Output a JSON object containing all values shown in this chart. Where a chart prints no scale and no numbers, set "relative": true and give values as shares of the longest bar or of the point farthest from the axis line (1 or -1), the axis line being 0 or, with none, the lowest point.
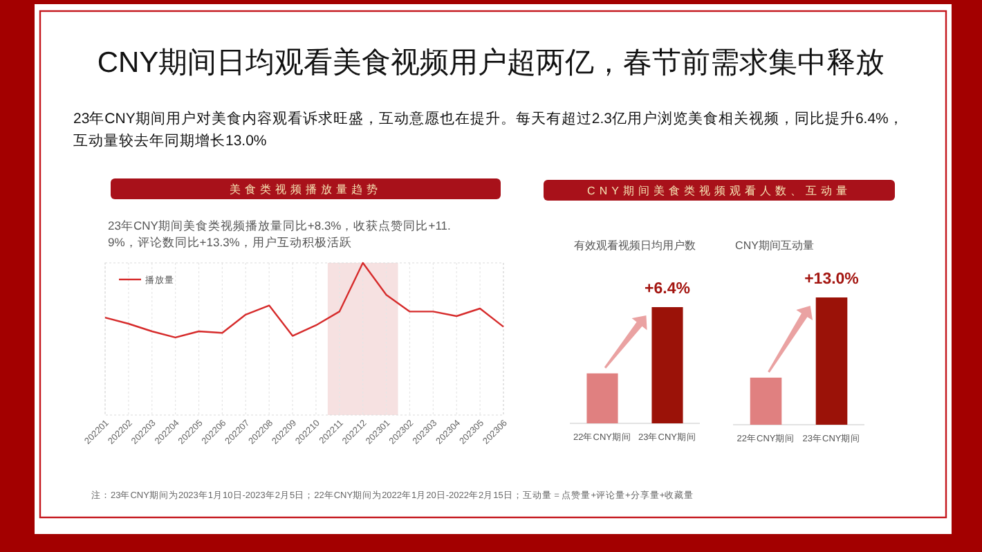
{
  "chart_data": [
    {
      "type": "other",
      "title": "CNY期间日均观看美食视频用户超两亿，春节前需求集中释放",
      "subtitle": "23年CNY期间用户对美食内容观看诉求旺盛，互动意愿也在提升。每天有超过2.3亿用户浏览美食相关视频，同比提升6.4%，互动量较去年同期增长13.0%",
      "annotations": [
        "注：23年CNY期间为2023年1月10日-2023年2月5日；22年CNY期间为2022年1月20日-2022年2月15日；互动量 = 点赞量+评论量+分享量+收藏量"
      ]
    },
    {
      "type": "line",
      "title": "美食类视频播放量趋势",
      "subtitle": "23年CNY期间美食类视频播放量同比+8.3%，收获点赞同比+11.9%，评论数同比+13.3%，用户互动积极活跃",
      "categories": [
        "202201",
        "202202",
        "202203",
        "202204",
        "202205",
        "202206",
        "202207",
        "202208",
        "202209",
        "202210",
        "202211",
        "202212",
        "202301",
        "202302",
        "202303",
        "202304",
        "202305",
        "202306"
      ],
      "relative": true,
      "grid": "x",
      "legend": "top left",
      "series": [
        {
          "name": "播放量",
          "color": "#d62b2b",
          "values": [
            0.64,
            0.6,
            0.55,
            0.51,
            0.55,
            0.54,
            0.66,
            0.72,
            0.52,
            0.59,
            0.68,
            1,
            0.79,
            0.68,
            0.68,
            0.65,
            0.7,
            0.58
          ]
        }
      ],
      "bands": [
        {
          "axis": "x",
          "from": "202211",
          "to": "202301",
          "color": "#f6e1e1"
        }
      ]
    },
    {
      "type": "bar",
      "title": "CNY期间美食类视频观看人数、互动量",
      "subtitle": "有效观看视频日均用户数",
      "categories": [
        "22年CNY期间",
        "23年CNY期间"
      ],
      "values": [
        0.43,
        1
      ],
      "colors": [
        "#e08080",
        "#9b1208"
      ],
      "relative": true,
      "annotations": [
        {
          "text": "+6.4%",
          "x": "23年CNY期间",
          "y": 1
        }
      ]
    },
    {
      "type": "bar",
      "subtitle": "CNY期间互动量",
      "categories": [
        "22年CNY期间",
        "23年CNY期间"
      ],
      "values": [
        0.37,
        1
      ],
      "colors": [
        "#e08080",
        "#9b1208"
      ],
      "relative": true,
      "annotations": [
        {
          "text": "+13.0%",
          "x": "23年CNY期间",
          "y": 1
        }
      ]
    }
  ]
}
